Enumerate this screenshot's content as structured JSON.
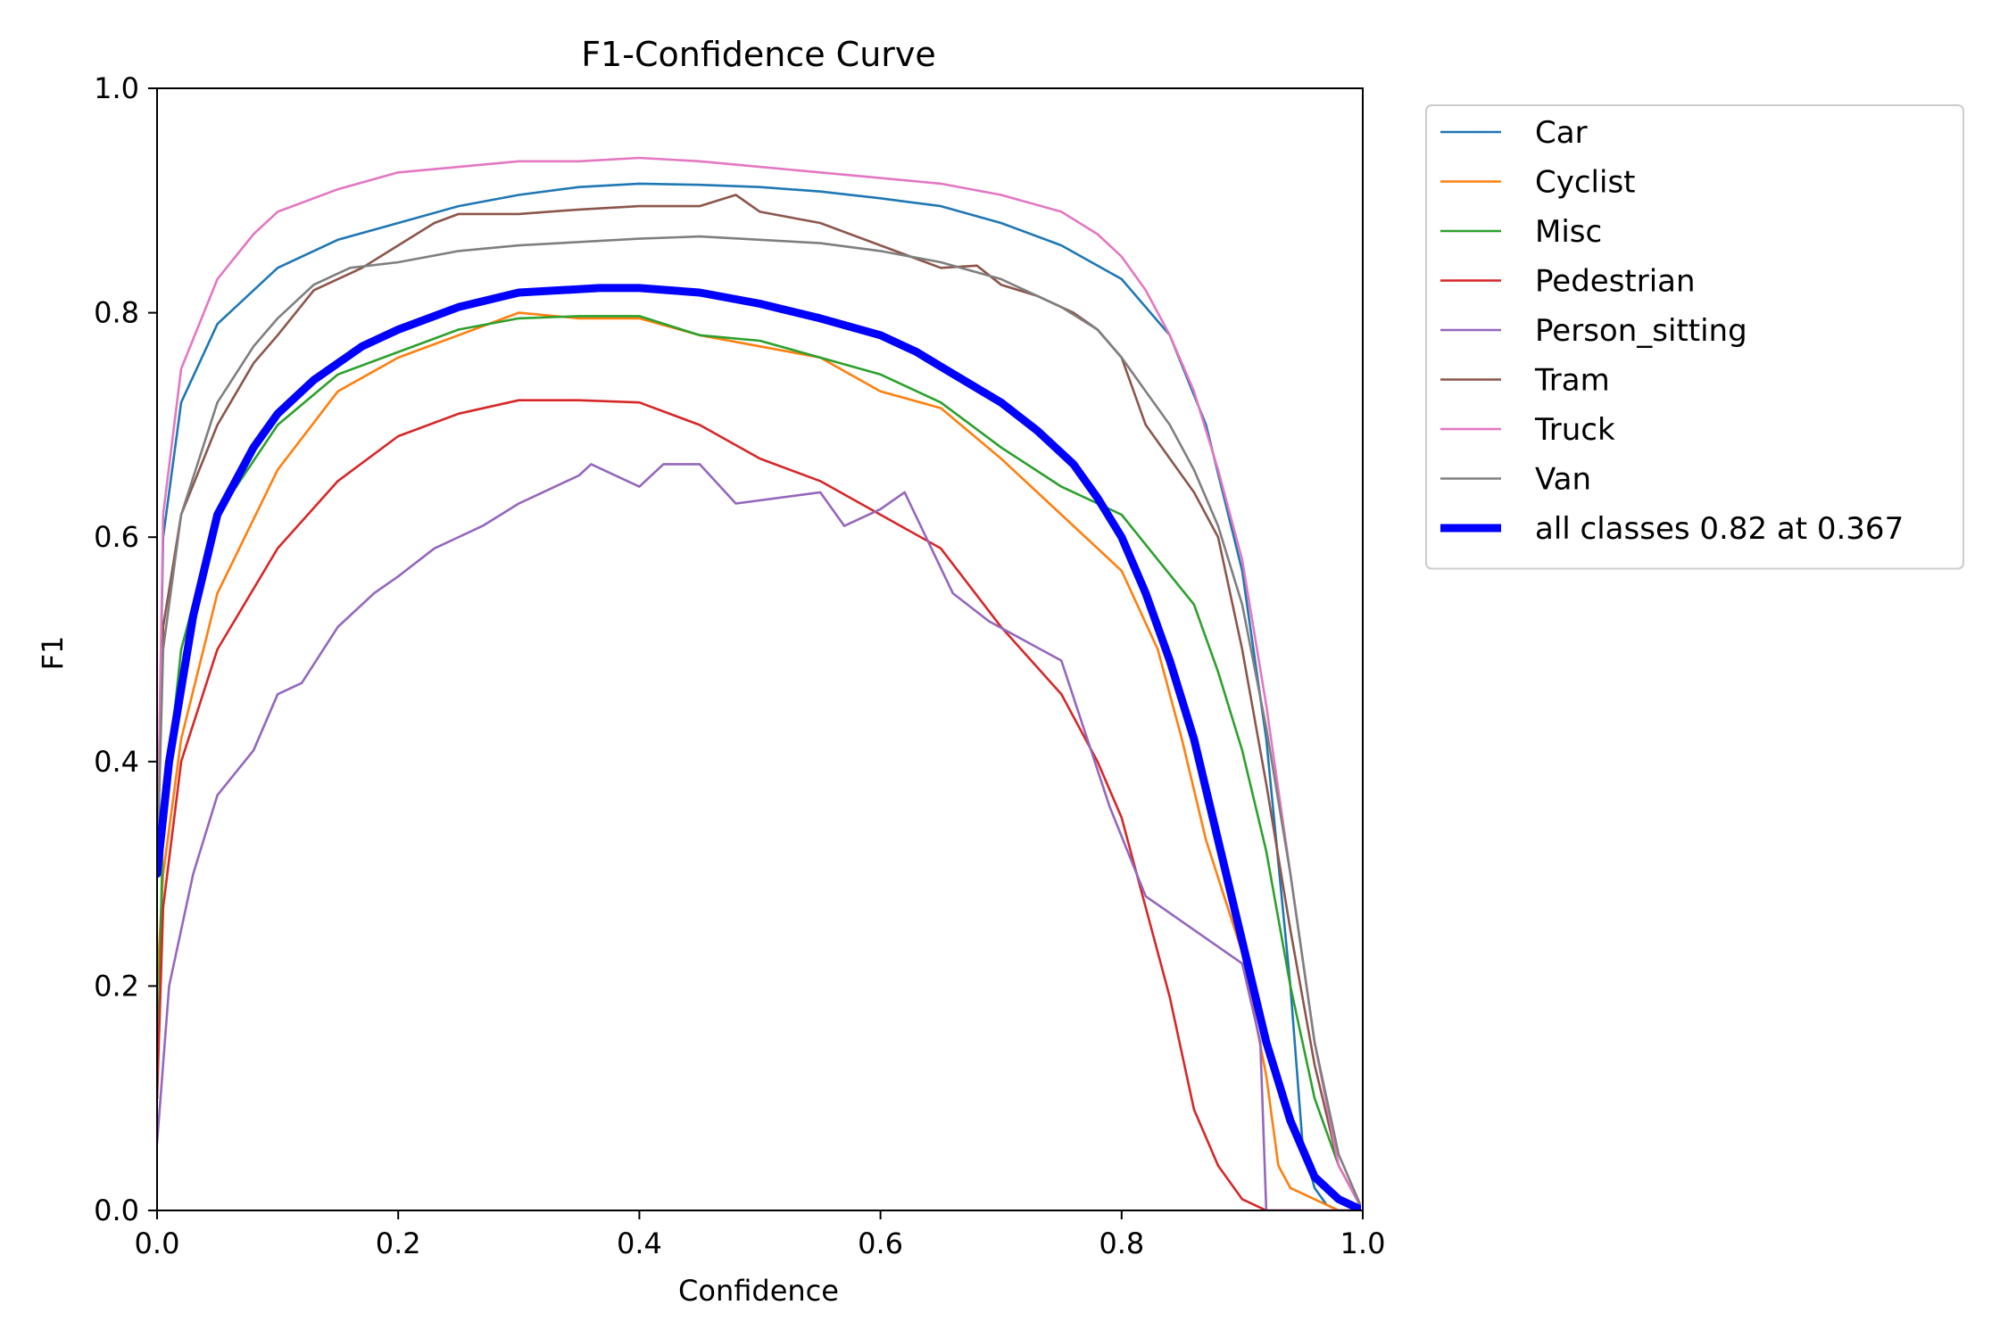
{
  "chart_data": {
    "type": "line",
    "title": "F1-Confidence Curve",
    "xlabel": "Confidence",
    "ylabel": "F1",
    "xlim": [
      0,
      1
    ],
    "ylim": [
      0,
      1
    ],
    "xticks": [
      "0.0",
      "0.2",
      "0.4",
      "0.6",
      "0.8",
      "1.0"
    ],
    "yticks": [
      "0.0",
      "0.2",
      "0.4",
      "0.6",
      "0.8",
      "1.0"
    ],
    "grid": false,
    "legend_position": "outside-top-right",
    "series": [
      {
        "name": "Car",
        "color": "#1f77b4",
        "width": "thin",
        "x": [
          0,
          0.005,
          0.02,
          0.05,
          0.1,
          0.15,
          0.2,
          0.25,
          0.3,
          0.35,
          0.4,
          0.45,
          0.5,
          0.55,
          0.6,
          0.65,
          0.7,
          0.75,
          0.8,
          0.84,
          0.87,
          0.9,
          0.92,
          0.94,
          0.95,
          0.96,
          0.97,
          0.98,
          1.0
        ],
        "y": [
          0.3,
          0.6,
          0.72,
          0.79,
          0.84,
          0.865,
          0.88,
          0.895,
          0.905,
          0.912,
          0.915,
          0.914,
          0.912,
          0.908,
          0.902,
          0.895,
          0.88,
          0.86,
          0.83,
          0.78,
          0.7,
          0.57,
          0.42,
          0.2,
          0.06,
          0.02,
          0.005,
          0.0,
          0.0
        ]
      },
      {
        "name": "Cyclist",
        "color": "#ff7f0e",
        "width": "thin",
        "x": [
          0,
          0.005,
          0.02,
          0.05,
          0.1,
          0.15,
          0.2,
          0.25,
          0.3,
          0.35,
          0.4,
          0.45,
          0.5,
          0.55,
          0.6,
          0.65,
          0.7,
          0.75,
          0.8,
          0.83,
          0.85,
          0.87,
          0.9,
          0.92,
          0.93,
          0.94,
          0.96,
          0.98,
          1.0
        ],
        "y": [
          0.2,
          0.3,
          0.42,
          0.55,
          0.66,
          0.73,
          0.76,
          0.78,
          0.8,
          0.795,
          0.795,
          0.78,
          0.77,
          0.76,
          0.73,
          0.715,
          0.67,
          0.62,
          0.57,
          0.5,
          0.42,
          0.33,
          0.23,
          0.12,
          0.04,
          0.02,
          0.01,
          0.0,
          0.0
        ]
      },
      {
        "name": "Misc",
        "color": "#2ca02c",
        "width": "thin",
        "x": [
          0,
          0.005,
          0.02,
          0.05,
          0.1,
          0.15,
          0.2,
          0.25,
          0.3,
          0.35,
          0.4,
          0.45,
          0.5,
          0.55,
          0.6,
          0.65,
          0.7,
          0.75,
          0.8,
          0.83,
          0.86,
          0.88,
          0.9,
          0.92,
          0.94,
          0.96,
          0.98,
          1.0
        ],
        "y": [
          0.1,
          0.35,
          0.5,
          0.62,
          0.7,
          0.745,
          0.765,
          0.785,
          0.795,
          0.797,
          0.797,
          0.78,
          0.775,
          0.76,
          0.745,
          0.72,
          0.68,
          0.645,
          0.62,
          0.58,
          0.54,
          0.48,
          0.41,
          0.32,
          0.2,
          0.1,
          0.04,
          0.0
        ]
      },
      {
        "name": "Pedestrian",
        "color": "#d62728",
        "width": "thin",
        "x": [
          0,
          0.005,
          0.02,
          0.05,
          0.1,
          0.15,
          0.2,
          0.25,
          0.3,
          0.35,
          0.4,
          0.45,
          0.5,
          0.55,
          0.6,
          0.65,
          0.7,
          0.75,
          0.78,
          0.8,
          0.82,
          0.84,
          0.86,
          0.88,
          0.9,
          0.92,
          1.0
        ],
        "y": [
          0.1,
          0.27,
          0.4,
          0.5,
          0.59,
          0.65,
          0.69,
          0.71,
          0.722,
          0.722,
          0.72,
          0.7,
          0.67,
          0.65,
          0.62,
          0.59,
          0.52,
          0.46,
          0.4,
          0.35,
          0.27,
          0.19,
          0.09,
          0.04,
          0.01,
          0.0,
          0.0
        ]
      },
      {
        "name": "Person_sitting",
        "color": "#9467bd",
        "width": "thin",
        "x": [
          0,
          0.01,
          0.03,
          0.05,
          0.08,
          0.1,
          0.12,
          0.15,
          0.18,
          0.2,
          0.23,
          0.27,
          0.3,
          0.32,
          0.35,
          0.36,
          0.4,
          0.42,
          0.45,
          0.48,
          0.55,
          0.57,
          0.6,
          0.62,
          0.66,
          0.69,
          0.75,
          0.79,
          0.82,
          0.9,
          0.915,
          0.92,
          1.0
        ],
        "y": [
          0.06,
          0.2,
          0.3,
          0.37,
          0.41,
          0.46,
          0.47,
          0.52,
          0.55,
          0.565,
          0.59,
          0.61,
          0.63,
          0.64,
          0.655,
          0.665,
          0.645,
          0.665,
          0.665,
          0.63,
          0.64,
          0.61,
          0.625,
          0.64,
          0.55,
          0.525,
          0.49,
          0.36,
          0.28,
          0.22,
          0.15,
          0.0,
          0.0
        ]
      },
      {
        "name": "Tram",
        "color": "#8c564b",
        "width": "thin",
        "x": [
          0,
          0.005,
          0.02,
          0.05,
          0.08,
          0.1,
          0.13,
          0.17,
          0.2,
          0.23,
          0.25,
          0.3,
          0.35,
          0.4,
          0.45,
          0.48,
          0.5,
          0.55,
          0.6,
          0.65,
          0.68,
          0.7,
          0.73,
          0.76,
          0.78,
          0.8,
          0.82,
          0.84,
          0.86,
          0.88,
          0.9,
          0.92,
          0.94,
          0.96,
          0.98,
          1.0
        ],
        "y": [
          0.3,
          0.52,
          0.62,
          0.7,
          0.755,
          0.78,
          0.82,
          0.84,
          0.86,
          0.88,
          0.888,
          0.888,
          0.892,
          0.895,
          0.895,
          0.905,
          0.89,
          0.88,
          0.86,
          0.84,
          0.842,
          0.825,
          0.815,
          0.8,
          0.785,
          0.76,
          0.7,
          0.67,
          0.64,
          0.6,
          0.5,
          0.38,
          0.25,
          0.13,
          0.04,
          0.0
        ]
      },
      {
        "name": "Truck",
        "color": "#e377c2",
        "width": "thin",
        "x": [
          0,
          0.005,
          0.02,
          0.05,
          0.08,
          0.1,
          0.15,
          0.2,
          0.25,
          0.3,
          0.35,
          0.4,
          0.45,
          0.5,
          0.55,
          0.6,
          0.65,
          0.7,
          0.75,
          0.78,
          0.8,
          0.82,
          0.84,
          0.86,
          0.88,
          0.9,
          0.92,
          0.94,
          0.96,
          0.98,
          1.0
        ],
        "y": [
          0.3,
          0.62,
          0.75,
          0.83,
          0.87,
          0.89,
          0.91,
          0.925,
          0.93,
          0.935,
          0.935,
          0.938,
          0.935,
          0.93,
          0.925,
          0.92,
          0.915,
          0.905,
          0.89,
          0.87,
          0.85,
          0.82,
          0.78,
          0.73,
          0.66,
          0.58,
          0.45,
          0.3,
          0.15,
          0.04,
          0.0
        ]
      },
      {
        "name": "Van",
        "color": "#7f7f7f",
        "width": "thin",
        "x": [
          0,
          0.005,
          0.02,
          0.05,
          0.08,
          0.1,
          0.13,
          0.16,
          0.2,
          0.25,
          0.3,
          0.35,
          0.4,
          0.45,
          0.5,
          0.55,
          0.6,
          0.65,
          0.7,
          0.75,
          0.78,
          0.8,
          0.82,
          0.84,
          0.86,
          0.88,
          0.9,
          0.92,
          0.94,
          0.96,
          0.98,
          1.0
        ],
        "y": [
          0.3,
          0.5,
          0.62,
          0.72,
          0.77,
          0.795,
          0.825,
          0.84,
          0.845,
          0.855,
          0.86,
          0.863,
          0.866,
          0.868,
          0.865,
          0.862,
          0.855,
          0.845,
          0.83,
          0.805,
          0.785,
          0.76,
          0.73,
          0.7,
          0.66,
          0.61,
          0.54,
          0.43,
          0.3,
          0.15,
          0.05,
          0.0
        ]
      },
      {
        "name": "all classes 0.82 at 0.367",
        "color": "#0000ff",
        "width": "thick",
        "x": [
          0,
          0.01,
          0.03,
          0.05,
          0.08,
          0.1,
          0.13,
          0.17,
          0.2,
          0.25,
          0.3,
          0.367,
          0.4,
          0.45,
          0.5,
          0.55,
          0.6,
          0.63,
          0.65,
          0.7,
          0.73,
          0.76,
          0.78,
          0.8,
          0.82,
          0.84,
          0.86,
          0.88,
          0.9,
          0.92,
          0.94,
          0.96,
          0.98,
          1.0
        ],
        "y": [
          0.3,
          0.4,
          0.53,
          0.62,
          0.68,
          0.71,
          0.74,
          0.77,
          0.785,
          0.805,
          0.818,
          0.822,
          0.822,
          0.818,
          0.808,
          0.795,
          0.78,
          0.765,
          0.752,
          0.72,
          0.695,
          0.665,
          0.635,
          0.6,
          0.55,
          0.49,
          0.42,
          0.33,
          0.24,
          0.15,
          0.08,
          0.03,
          0.01,
          0.0
        ]
      }
    ]
  }
}
